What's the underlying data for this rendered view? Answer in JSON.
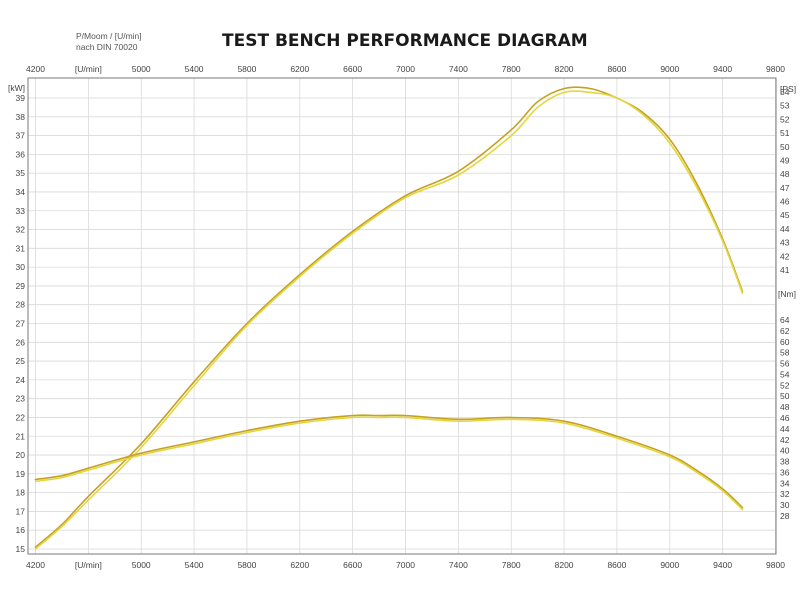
{
  "chart_data": {
    "type": "line",
    "title": "TEST BENCH PERFORMANCE DIAGRAM",
    "subtitle_lines": [
      "P/Moom / [U/min]",
      "nach DIN 70020"
    ],
    "x_unit_label": "[U/min]",
    "left_axis_label": "[kW]",
    "right_power_axis_label": "[PS]",
    "right_torque_axis_label": "[Nm]",
    "xlim": [
      4200,
      9800
    ],
    "x_ticks": [
      4200,
      4600,
      5000,
      5400,
      5800,
      6200,
      6600,
      7000,
      7400,
      7800,
      8200,
      8600,
      9000,
      9400,
      9800
    ],
    "x_ticks_top_labels": [
      "4200",
      "[U/min]",
      "5000",
      "5400",
      "5800",
      "6200",
      "6600",
      "7000",
      "7400",
      "7800",
      "8200",
      "8600",
      "9000",
      "9400",
      "9800"
    ],
    "x_ticks_bottom_labels": [
      "4200",
      "[U/min]",
      "5000",
      "5400",
      "5800",
      "6200",
      "6600",
      "7000",
      "7400",
      "7800",
      "8200",
      "8600",
      "9000",
      "9400",
      "9800"
    ],
    "ylim": [
      15,
      40
    ],
    "y_ticks": [
      15,
      16,
      17,
      18,
      19,
      20,
      21,
      22,
      23,
      24,
      25,
      26,
      27,
      28,
      29,
      30,
      31,
      32,
      33,
      34,
      35,
      36,
      37,
      38,
      39
    ],
    "right_ps_ticks": [
      "54",
      "53",
      "52",
      "51",
      "50",
      "49",
      "48",
      "47",
      "46",
      "45",
      "44",
      "43",
      "42",
      "41"
    ],
    "right_nm_ticks": [
      "64",
      "62",
      "60",
      "58",
      "56",
      "54",
      "52",
      "50",
      "48",
      "46",
      "44",
      "42",
      "40",
      "38",
      "36",
      "34",
      "32",
      "30",
      "28"
    ],
    "grid": true,
    "series": [
      {
        "color": "#c8a020",
        "x": [
          4200,
          4400,
          4600,
          5000,
          5400,
          5800,
          6200,
          6600,
          7000,
          7400,
          7800,
          8000,
          8200,
          8400,
          8600,
          8800,
          9000,
          9200,
          9400,
          9550
        ],
        "values": [
          15.1,
          16.3,
          17.8,
          20.6,
          23.9,
          27.0,
          29.6,
          31.9,
          33.8,
          35.1,
          37.3,
          38.8,
          39.5,
          39.5,
          39.0,
          38.2,
          36.8,
          34.5,
          31.5,
          28.7
        ]
      },
      {
        "color": "#e0d840",
        "x": [
          4200,
          4400,
          4600,
          5000,
          5400,
          5800,
          6200,
          6600,
          7000,
          7400,
          7800,
          8000,
          8200,
          8400,
          8600,
          8800,
          9000,
          9200,
          9400,
          9550
        ],
        "values": [
          15.0,
          16.2,
          17.6,
          20.4,
          23.7,
          26.9,
          29.5,
          31.8,
          33.7,
          34.9,
          37.0,
          38.5,
          39.3,
          39.3,
          39.0,
          38.1,
          36.6,
          34.3,
          31.4,
          28.6
        ]
      },
      {
        "color": "#c8a020",
        "x": [
          4200,
          4400,
          4600,
          5000,
          5400,
          5800,
          6200,
          6600,
          6800,
          7000,
          7400,
          7800,
          8200,
          8600,
          9000,
          9200,
          9400,
          9550
        ],
        "values": [
          18.7,
          18.9,
          19.3,
          20.1,
          20.7,
          21.3,
          21.8,
          22.1,
          22.1,
          22.1,
          21.9,
          22.0,
          21.8,
          21.0,
          20.0,
          19.2,
          18.2,
          17.2
        ]
      },
      {
        "color": "#e0d840",
        "x": [
          4200,
          4400,
          4600,
          5000,
          5400,
          5800,
          6200,
          6600,
          6800,
          7000,
          7400,
          7800,
          8200,
          8600,
          9000,
          9200,
          9400,
          9550
        ],
        "values": [
          18.6,
          18.8,
          19.2,
          20.0,
          20.6,
          21.2,
          21.7,
          22.0,
          22.0,
          22.0,
          21.8,
          21.9,
          21.7,
          20.9,
          19.9,
          19.1,
          18.1,
          17.1
        ]
      }
    ]
  }
}
